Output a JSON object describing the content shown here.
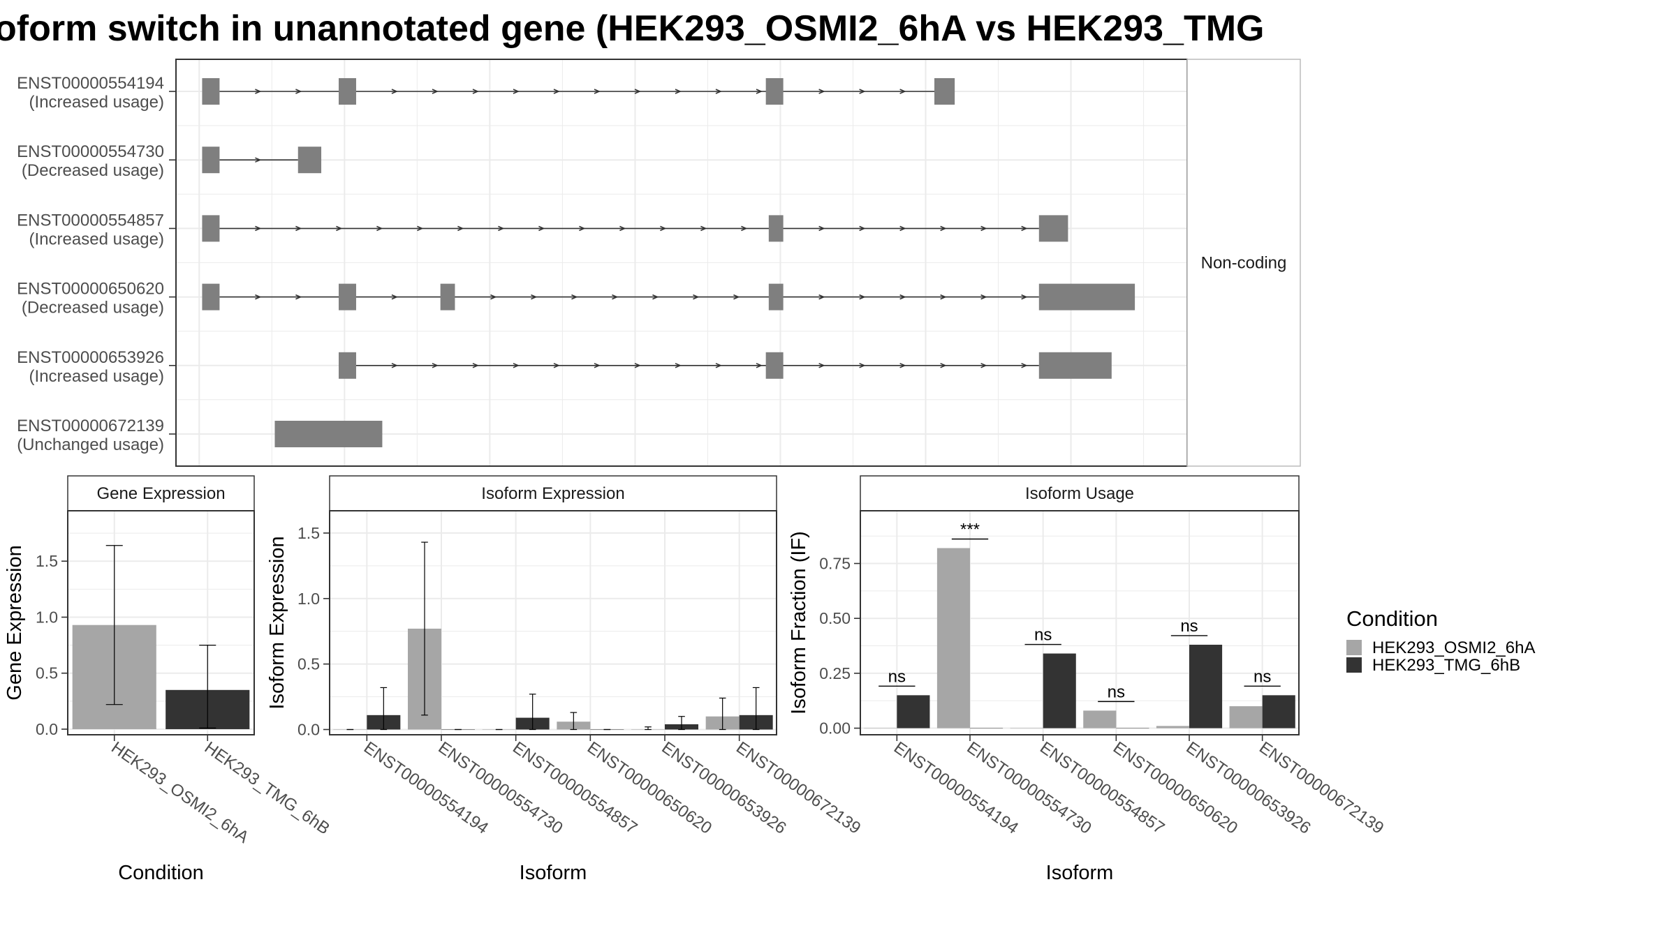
{
  "title": "oform switch in unannotated gene (HEK293_OSMI2_6hA vs HEK293_TMG",
  "colors": {
    "exon": "#7f7f7f",
    "cond_a": "#a6a6a6",
    "cond_b": "#333333",
    "panel_border": "#333333",
    "strip_border": "#bbbbbb",
    "grid": "#ebebeb",
    "text": "#1a1a1a",
    "tick_text": "#4d4d4d"
  },
  "chart_data": [
    {
      "type": "gene-structure",
      "facet_label": "Non-coding",
      "transcripts": [
        {
          "id": "ENST00000554194",
          "usage": "(Increased usage)",
          "exons": [
            [
              1,
              7
            ],
            [
              48,
              54
            ],
            [
              195,
              201
            ],
            [
              253,
              260
            ]
          ]
        },
        {
          "id": "ENST00000554730",
          "usage": "(Decreased usage)",
          "exons": [
            [
              1,
              7
            ],
            [
              34,
              42
            ]
          ]
        },
        {
          "id": "ENST00000554857",
          "usage": "(Increased usage)",
          "exons": [
            [
              1,
              7
            ],
            [
              196,
              201
            ],
            [
              289,
              299
            ]
          ]
        },
        {
          "id": "ENST00000650620",
          "usage": "(Decreased usage)",
          "exons": [
            [
              1,
              7
            ],
            [
              48,
              54
            ],
            [
              83,
              88
            ],
            [
              196,
              201
            ],
            [
              289,
              322
            ]
          ]
        },
        {
          "id": "ENST00000653926",
          "usage": "(Increased usage)",
          "exons": [
            [
              48,
              54
            ],
            [
              195,
              201
            ],
            [
              289,
              314
            ]
          ]
        },
        {
          "id": "ENST00000672139",
          "usage": "(Unchanged usage)",
          "exons": [
            [
              26,
              63
            ]
          ]
        }
      ]
    },
    {
      "type": "bar",
      "strip": "Gene Expression",
      "xlabel": "Condition",
      "ylabel": "Gene Expression",
      "categories": [
        "HEK293_OSMI2_6hA",
        "HEK293_TMG_6hB"
      ],
      "values": [
        0.93,
        0.35
      ],
      "errors": [
        [
          0.22,
          1.64
        ],
        [
          0.01,
          0.75
        ]
      ],
      "ylim": [
        -0.05,
        1.95
      ],
      "yticks": [
        0.0,
        0.5,
        1.0,
        1.5
      ],
      "ytick_labels": [
        "0.0",
        "0.5",
        "1.0",
        "1.5"
      ]
    },
    {
      "type": "bar",
      "strip": "Isoform Expression",
      "xlabel": "Isoform",
      "ylabel": "Isoform Expression",
      "categories": [
        "ENST00000554194",
        "ENST00000554730",
        "ENST00000554857",
        "ENST00000650620",
        "ENST00000653926",
        "ENST00000672139"
      ],
      "series": [
        {
          "name": "HEK293_OSMI2_6hA",
          "values": [
            0.0,
            0.77,
            0.0,
            0.06,
            0.0,
            0.1
          ],
          "errors": [
            [
              0,
              0
            ],
            [
              0.11,
              1.43
            ],
            [
              0,
              0
            ],
            [
              0.0,
              0.13
            ],
            [
              0.0,
              0.02
            ],
            [
              0.0,
              0.24
            ]
          ]
        },
        {
          "name": "HEK293_TMG_6hB",
          "values": [
            0.11,
            0.0,
            0.09,
            0.0,
            0.04,
            0.11
          ],
          "errors": [
            [
              0.0,
              0.32
            ],
            [
              0,
              0
            ],
            [
              0.0,
              0.27
            ],
            [
              0,
              0
            ],
            [
              0.0,
              0.1
            ],
            [
              0.0,
              0.32
            ]
          ]
        }
      ],
      "ylim": [
        -0.04,
        1.67
      ],
      "yticks": [
        0.0,
        0.5,
        1.0,
        1.5
      ],
      "ytick_labels": [
        "0.0",
        "0.5",
        "1.0",
        "1.5"
      ]
    },
    {
      "type": "bar",
      "strip": "Isoform Usage",
      "xlabel": "Isoform",
      "ylabel": "Isoform Fraction (IF)",
      "categories": [
        "ENST00000554194",
        "ENST00000554730",
        "ENST00000554857",
        "ENST00000650620",
        "ENST00000653926",
        "ENST00000672139"
      ],
      "series": [
        {
          "name": "HEK293_OSMI2_6hA",
          "values": [
            0.0,
            0.82,
            0.0,
            0.08,
            0.01,
            0.1
          ]
        },
        {
          "name": "HEK293_TMG_6hB",
          "values": [
            0.15,
            0.0,
            0.34,
            0.0,
            0.38,
            0.15
          ]
        }
      ],
      "significance": [
        "ns",
        "***",
        "ns",
        "ns",
        "ns",
        "ns"
      ],
      "ylim": [
        -0.03,
        0.99
      ],
      "yticks": [
        0.0,
        0.25,
        0.5,
        0.75
      ],
      "ytick_labels": [
        "0.00",
        "0.25",
        "0.50",
        "0.75"
      ]
    }
  ],
  "legend": {
    "title": "Condition",
    "position": "right",
    "entries": [
      "HEK293_OSMI2_6hA",
      "HEK293_TMG_6hB"
    ]
  }
}
